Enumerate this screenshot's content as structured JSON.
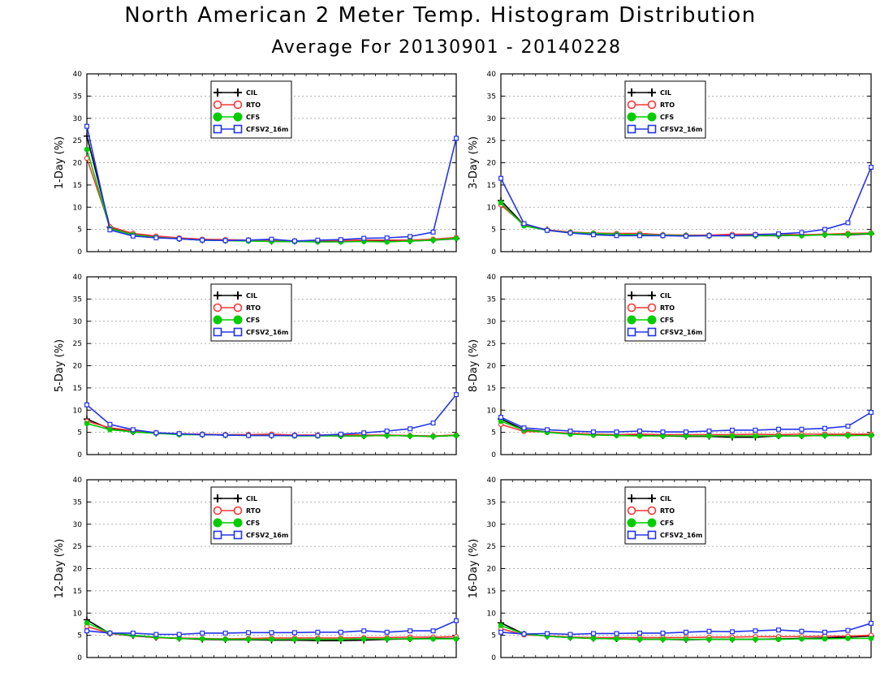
{
  "figure": {
    "title": "North American 2 Meter Temp. Histogram Distribution",
    "subtitle": "Average For 20130901 - 20140228"
  },
  "colors": {
    "CIL": "#000000",
    "RTO": "#ff3333",
    "CFS": "#00cc00",
    "CFSV2_16m": "#2233ee",
    "grid": "#999999"
  },
  "chart_data": [
    {
      "type": "line",
      "ylabel": "1-Day (%)",
      "ylim": [
        0,
        40
      ],
      "yticks": [
        "0",
        "5",
        "10",
        "15",
        "20",
        "25",
        "30",
        "35",
        "40"
      ],
      "grid": true,
      "legend_position": "top-center",
      "x": [
        1,
        2,
        3,
        4,
        5,
        6,
        7,
        8,
        9,
        10,
        11,
        12,
        13,
        14,
        15,
        16,
        17
      ],
      "series": [
        {
          "name": "CIL",
          "marker": "plus",
          "values": [
            26,
            5.5,
            4,
            3.3,
            2.9,
            2.6,
            2.5,
            2.5,
            2.3,
            2.3,
            2.3,
            2.3,
            2.4,
            2.3,
            2.4,
            2.6,
            2.9
          ]
        },
        {
          "name": "RTO",
          "marker": "open-circle",
          "values": [
            21,
            5.6,
            4.1,
            3.5,
            3.1,
            2.8,
            2.7,
            2.6,
            2.5,
            2.4,
            2.5,
            2.5,
            2.6,
            2.6,
            2.6,
            2.8,
            3.2
          ]
        },
        {
          "name": "CFS",
          "marker": "filled-circle",
          "values": [
            23,
            5.2,
            3.8,
            3.2,
            2.9,
            2.6,
            2.5,
            2.4,
            2.3,
            2.3,
            2.2,
            2.2,
            2.3,
            2.2,
            2.4,
            2.6,
            3.0
          ]
        },
        {
          "name": "CFSV2_16m",
          "marker": "open-square",
          "values": [
            28.2,
            4.9,
            3.5,
            3.1,
            2.9,
            2.6,
            2.5,
            2.6,
            2.8,
            2.4,
            2.6,
            2.7,
            3.0,
            3.1,
            3.4,
            4.4,
            25.5
          ]
        }
      ]
    },
    {
      "type": "line",
      "ylabel": "3-Day (%)",
      "ylim": [
        0,
        40
      ],
      "yticks": [
        "0",
        "5",
        "10",
        "15",
        "20",
        "25",
        "30",
        "35",
        "40"
      ],
      "grid": true,
      "legend_position": "top-center",
      "x": [
        1,
        2,
        3,
        4,
        5,
        6,
        7,
        8,
        9,
        10,
        11,
        12,
        13,
        14,
        15,
        16,
        17
      ],
      "series": [
        {
          "name": "CIL",
          "marker": "plus",
          "values": [
            11.5,
            6,
            4.9,
            4.3,
            4,
            3.9,
            3.8,
            3.7,
            3.6,
            3.6,
            3.6,
            3.6,
            3.6,
            3.7,
            3.8,
            3.8,
            4
          ]
        },
        {
          "name": "RTO",
          "marker": "open-circle",
          "values": [
            10.5,
            6.1,
            4.9,
            4.4,
            4.2,
            4.1,
            4.1,
            3.8,
            3.7,
            3.7,
            3.9,
            3.9,
            3.9,
            3.8,
            3.9,
            4.1,
            4.2
          ]
        },
        {
          "name": "CFS",
          "marker": "filled-circle",
          "values": [
            11,
            5.8,
            4.8,
            4.3,
            4.1,
            3.9,
            3.8,
            3.7,
            3.6,
            3.6,
            3.6,
            3.6,
            3.7,
            3.6,
            3.8,
            3.9,
            4.1
          ]
        },
        {
          "name": "CFSV2_16m",
          "marker": "open-square",
          "values": [
            16.5,
            6.3,
            4.8,
            4.2,
            3.8,
            3.6,
            3.6,
            3.6,
            3.5,
            3.6,
            3.6,
            3.8,
            4.0,
            4.3,
            5.0,
            6.5,
            19
          ]
        }
      ]
    },
    {
      "type": "line",
      "ylabel": "5-Day (%)",
      "ylim": [
        0,
        40
      ],
      "yticks": [
        "0",
        "5",
        "10",
        "15",
        "20",
        "25",
        "30",
        "35",
        "40"
      ],
      "grid": true,
      "legend_position": "top-center",
      "x": [
        1,
        2,
        3,
        4,
        5,
        6,
        7,
        8,
        9,
        10,
        11,
        12,
        13,
        14,
        15,
        16,
        17
      ],
      "series": [
        {
          "name": "CIL",
          "marker": "plus",
          "values": [
            8,
            5.8,
            5.1,
            4.8,
            4.6,
            4.5,
            4.4,
            4.4,
            4.3,
            4.3,
            4.3,
            4.2,
            4.2,
            4.3,
            4.2,
            4.1,
            4.3
          ]
        },
        {
          "name": "RTO",
          "marker": "open-circle",
          "values": [
            7.5,
            6,
            5.4,
            4.9,
            4.7,
            4.6,
            4.5,
            4.5,
            4.6,
            4.4,
            4.4,
            4.5,
            4.4,
            4.4,
            4.3,
            4.2,
            4.4
          ]
        },
        {
          "name": "CFS",
          "marker": "filled-circle",
          "values": [
            7,
            5.6,
            5.1,
            4.8,
            4.5,
            4.5,
            4.4,
            4.3,
            4.3,
            4.2,
            4.2,
            4.2,
            4.2,
            4.3,
            4.2,
            4.1,
            4.3
          ]
        },
        {
          "name": "CFSV2_16m",
          "marker": "open-square",
          "values": [
            11.2,
            6.8,
            5.6,
            4.9,
            4.7,
            4.5,
            4.4,
            4.3,
            4.3,
            4.3,
            4.3,
            4.6,
            4.9,
            5.3,
            5.8,
            7.1,
            13.5
          ]
        }
      ]
    },
    {
      "type": "line",
      "ylabel": "8-Day (%)",
      "ylim": [
        0,
        40
      ],
      "yticks": [
        "0",
        "5",
        "10",
        "15",
        "20",
        "25",
        "30",
        "35",
        "40"
      ],
      "grid": true,
      "legend_position": "top-center",
      "x": [
        1,
        2,
        3,
        4,
        5,
        6,
        7,
        8,
        9,
        10,
        11,
        12,
        13,
        14,
        15,
        16,
        17
      ],
      "series": [
        {
          "name": "CIL",
          "marker": "plus",
          "values": [
            8,
            5.6,
            5.1,
            4.7,
            4.5,
            4.4,
            4.3,
            4.2,
            4.1,
            4.1,
            3.9,
            3.9,
            4.2,
            4.2,
            4.3,
            4.3,
            4.4
          ]
        },
        {
          "name": "RTO",
          "marker": "open-circle",
          "values": [
            6.8,
            5.2,
            5.1,
            4.8,
            4.6,
            4.5,
            4.6,
            4.5,
            4.5,
            4.5,
            4.5,
            4.6,
            4.5,
            4.6,
            4.6,
            4.6,
            4.6
          ]
        },
        {
          "name": "CFS",
          "marker": "filled-circle",
          "values": [
            7.5,
            5.5,
            5,
            4.6,
            4.4,
            4.3,
            4.2,
            4.2,
            4.2,
            4.2,
            4.2,
            4.2,
            4.2,
            4.2,
            4.3,
            4.3,
            4.3
          ]
        },
        {
          "name": "CFSV2_16m",
          "marker": "open-square",
          "values": [
            8.4,
            6,
            5.6,
            5.3,
            5.1,
            5.1,
            5.3,
            5.1,
            5.1,
            5.3,
            5.5,
            5.5,
            5.7,
            5.7,
            5.9,
            6.4,
            9.5
          ]
        }
      ]
    },
    {
      "type": "line",
      "ylabel": "12-Day (%)",
      "ylim": [
        0,
        40
      ],
      "yticks": [
        "0",
        "5",
        "10",
        "15",
        "20",
        "25",
        "30",
        "35",
        "40"
      ],
      "grid": true,
      "legend_position": "top-center",
      "x": [
        1,
        2,
        3,
        4,
        5,
        6,
        7,
        8,
        9,
        10,
        11,
        12,
        13,
        14,
        15,
        16,
        17
      ],
      "series": [
        {
          "name": "CIL",
          "marker": "plus",
          "values": [
            8.5,
            5.4,
            4.9,
            4.5,
            4.3,
            4.1,
            4,
            4,
            3.9,
            3.9,
            3.8,
            3.8,
            3.9,
            4.1,
            4.2,
            4.3,
            4.3
          ]
        },
        {
          "name": "RTO",
          "marker": "open-circle",
          "values": [
            7,
            5.4,
            5,
            4.5,
            4.4,
            4.3,
            4.2,
            4.3,
            4.4,
            4.4,
            4.4,
            4.4,
            4.5,
            4.5,
            4.6,
            4.6,
            4.7
          ]
        },
        {
          "name": "CFS",
          "marker": "filled-circle",
          "values": [
            7.8,
            5.5,
            5,
            4.6,
            4.3,
            4.2,
            4.1,
            4.1,
            4.1,
            4.1,
            4.1,
            4.1,
            4.2,
            4.2,
            4.2,
            4.2,
            4.2
          ]
        },
        {
          "name": "CFSV2_16m",
          "marker": "open-square",
          "values": [
            6,
            5.5,
            5.5,
            5.2,
            5.2,
            5.5,
            5.5,
            5.6,
            5.6,
            5.6,
            5.7,
            5.7,
            6,
            5.7,
            6,
            6,
            8.3
          ]
        }
      ]
    },
    {
      "type": "line",
      "ylabel": "16-Day (%)",
      "ylim": [
        0,
        40
      ],
      "yticks": [
        "0",
        "5",
        "10",
        "15",
        "20",
        "25",
        "30",
        "35",
        "40"
      ],
      "grid": true,
      "legend_position": "top-center",
      "x": [
        1,
        2,
        3,
        4,
        5,
        6,
        7,
        8,
        9,
        10,
        11,
        12,
        13,
        14,
        15,
        16,
        17
      ],
      "series": [
        {
          "name": "CIL",
          "marker": "plus",
          "values": [
            7.8,
            5.3,
            4.8,
            4.5,
            4.3,
            4.2,
            4.1,
            4.1,
            4,
            4.1,
            4.1,
            4.1,
            4.2,
            4.3,
            4.4,
            4.6,
            4.8
          ]
        },
        {
          "name": "RTO",
          "marker": "open-circle",
          "values": [
            6.5,
            5.1,
            4.9,
            4.6,
            4.5,
            4.5,
            4.5,
            4.5,
            4.5,
            4.6,
            4.6,
            4.7,
            4.7,
            4.7,
            4.8,
            4.8,
            5
          ]
        },
        {
          "name": "CFS",
          "marker": "filled-circle",
          "values": [
            7.2,
            5.3,
            4.8,
            4.5,
            4.3,
            4.2,
            4.1,
            4.1,
            4.1,
            4.1,
            4.1,
            4.1,
            4.1,
            4.2,
            4.2,
            4.3,
            4.3
          ]
        },
        {
          "name": "CFSV2_16m",
          "marker": "open-square",
          "values": [
            5.7,
            5.3,
            5.4,
            5.2,
            5.4,
            5.4,
            5.5,
            5.5,
            5.7,
            5.9,
            5.8,
            6,
            6.2,
            5.9,
            5.7,
            6.1,
            7.7
          ]
        }
      ]
    }
  ]
}
